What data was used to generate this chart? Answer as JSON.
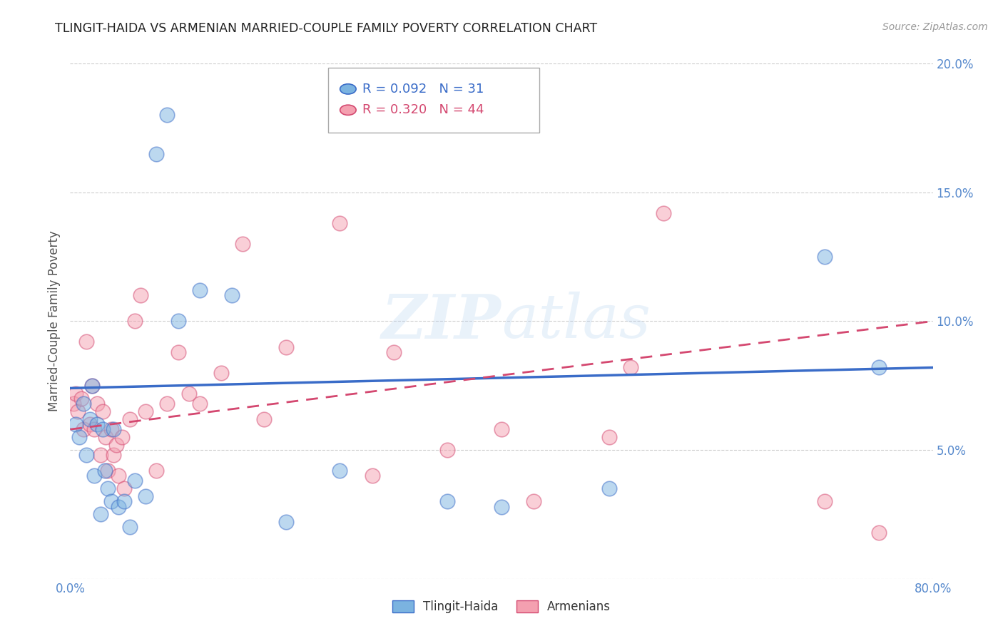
{
  "title": "TLINGIT-HAIDA VS ARMENIAN MARRIED-COUPLE FAMILY POVERTY CORRELATION CHART",
  "source": "Source: ZipAtlas.com",
  "ylabel": "Married-Couple Family Poverty",
  "legend_label1": "Tlingit-Haida",
  "legend_label2": "Armenians",
  "R1": 0.092,
  "N1": 31,
  "R2": 0.32,
  "N2": 44,
  "color1": "#7BB3E0",
  "color2": "#F4A0B0",
  "trend1_color": "#3A6CC8",
  "trend2_color": "#D44870",
  "axis_label_color": "#5588CC",
  "xlim": [
    0.0,
    0.8
  ],
  "ylim": [
    0.0,
    0.2
  ],
  "xtick_positions": [
    0.0,
    0.8
  ],
  "xtick_labels": [
    "0.0%",
    "80.0%"
  ],
  "ytick_positions": [
    0.0,
    0.05,
    0.1,
    0.15,
    0.2
  ],
  "ytick_labels": [
    "",
    "5.0%",
    "10.0%",
    "15.0%",
    "20.0%"
  ],
  "tlingit_x": [
    0.005,
    0.008,
    0.012,
    0.015,
    0.018,
    0.02,
    0.022,
    0.025,
    0.028,
    0.03,
    0.032,
    0.035,
    0.038,
    0.04,
    0.045,
    0.05,
    0.055,
    0.06,
    0.07,
    0.08,
    0.09,
    0.1,
    0.12,
    0.15,
    0.2,
    0.25,
    0.35,
    0.4,
    0.5,
    0.7,
    0.75
  ],
  "tlingit_y": [
    0.06,
    0.055,
    0.068,
    0.048,
    0.062,
    0.075,
    0.04,
    0.06,
    0.025,
    0.058,
    0.042,
    0.035,
    0.03,
    0.058,
    0.028,
    0.03,
    0.02,
    0.038,
    0.032,
    0.165,
    0.18,
    0.1,
    0.112,
    0.11,
    0.022,
    0.042,
    0.03,
    0.028,
    0.035,
    0.125,
    0.082
  ],
  "armenian_x": [
    0.003,
    0.005,
    0.007,
    0.01,
    0.012,
    0.015,
    0.018,
    0.02,
    0.022,
    0.025,
    0.028,
    0.03,
    0.033,
    0.035,
    0.038,
    0.04,
    0.043,
    0.045,
    0.048,
    0.05,
    0.055,
    0.06,
    0.065,
    0.07,
    0.08,
    0.09,
    0.1,
    0.11,
    0.12,
    0.14,
    0.16,
    0.18,
    0.2,
    0.25,
    0.28,
    0.3,
    0.35,
    0.4,
    0.43,
    0.5,
    0.52,
    0.55,
    0.7,
    0.75
  ],
  "armenian_y": [
    0.068,
    0.072,
    0.065,
    0.07,
    0.058,
    0.092,
    0.06,
    0.075,
    0.058,
    0.068,
    0.048,
    0.065,
    0.055,
    0.042,
    0.058,
    0.048,
    0.052,
    0.04,
    0.055,
    0.035,
    0.062,
    0.1,
    0.11,
    0.065,
    0.042,
    0.068,
    0.088,
    0.072,
    0.068,
    0.08,
    0.13,
    0.062,
    0.09,
    0.138,
    0.04,
    0.088,
    0.05,
    0.058,
    0.03,
    0.055,
    0.082,
    0.142,
    0.03,
    0.018
  ],
  "watermark_line1": "ZIP",
  "watermark_line2": "atlas",
  "trend1_x0": 0.0,
  "trend1_y0": 0.074,
  "trend1_x1": 0.8,
  "trend1_y1": 0.082,
  "trend2_x0": 0.0,
  "trend2_y0": 0.058,
  "trend2_x1": 0.8,
  "trend2_y1": 0.1
}
